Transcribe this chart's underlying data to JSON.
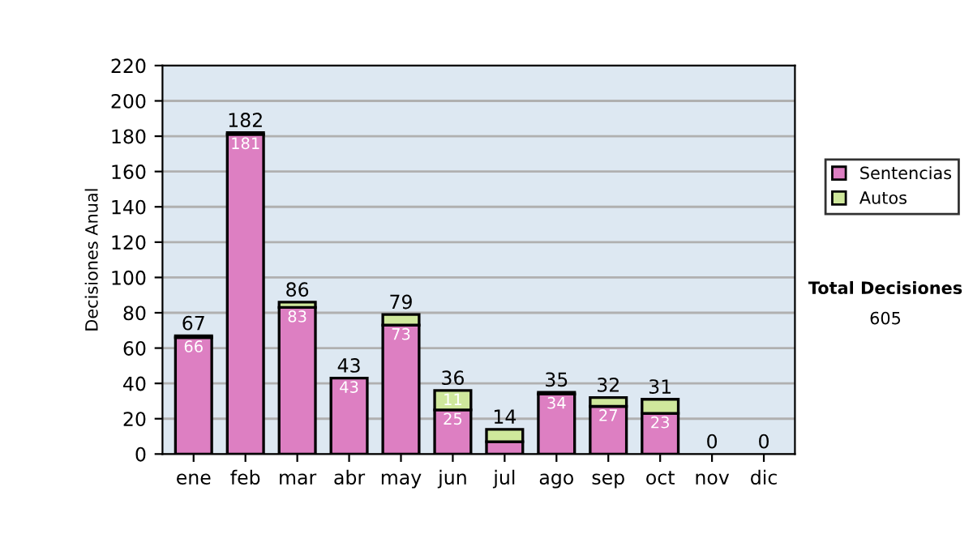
{
  "chart_data": {
    "type": "bar",
    "stacked": true,
    "ylabel": "Decisiones Anual",
    "categories": [
      "ene",
      "feb",
      "mar",
      "abr",
      "may",
      "jun",
      "jul",
      "ago",
      "sep",
      "oct",
      "nov",
      "dic"
    ],
    "series": [
      {
        "name": "Sentencias",
        "color": "#dd7fc2",
        "values": [
          66,
          181,
          83,
          43,
          73,
          25,
          7,
          34,
          27,
          23,
          0,
          0
        ],
        "value_labels": [
          "66",
          "181",
          "83",
          "43",
          "73",
          "25",
          null,
          "34",
          "27",
          "23",
          null,
          null
        ]
      },
      {
        "name": "Autos",
        "color": "#cfe89c",
        "values": [
          1,
          1,
          3,
          0,
          6,
          11,
          7,
          1,
          5,
          8,
          0,
          0
        ],
        "value_labels": [
          null,
          null,
          null,
          null,
          null,
          "11",
          null,
          null,
          null,
          null,
          null,
          null
        ]
      }
    ],
    "totals": [
      "67",
      "182",
      "86",
      "43",
      "79",
      "36",
      "14",
      "35",
      "32",
      "31",
      "0",
      "0"
    ],
    "ylim": [
      0,
      220
    ],
    "yticks": [
      0,
      20,
      40,
      60,
      80,
      100,
      120,
      140,
      160,
      180,
      200,
      220
    ],
    "grid": "y",
    "legend": "right",
    "annotations": [
      "Total Decisiones",
      "605"
    ]
  }
}
